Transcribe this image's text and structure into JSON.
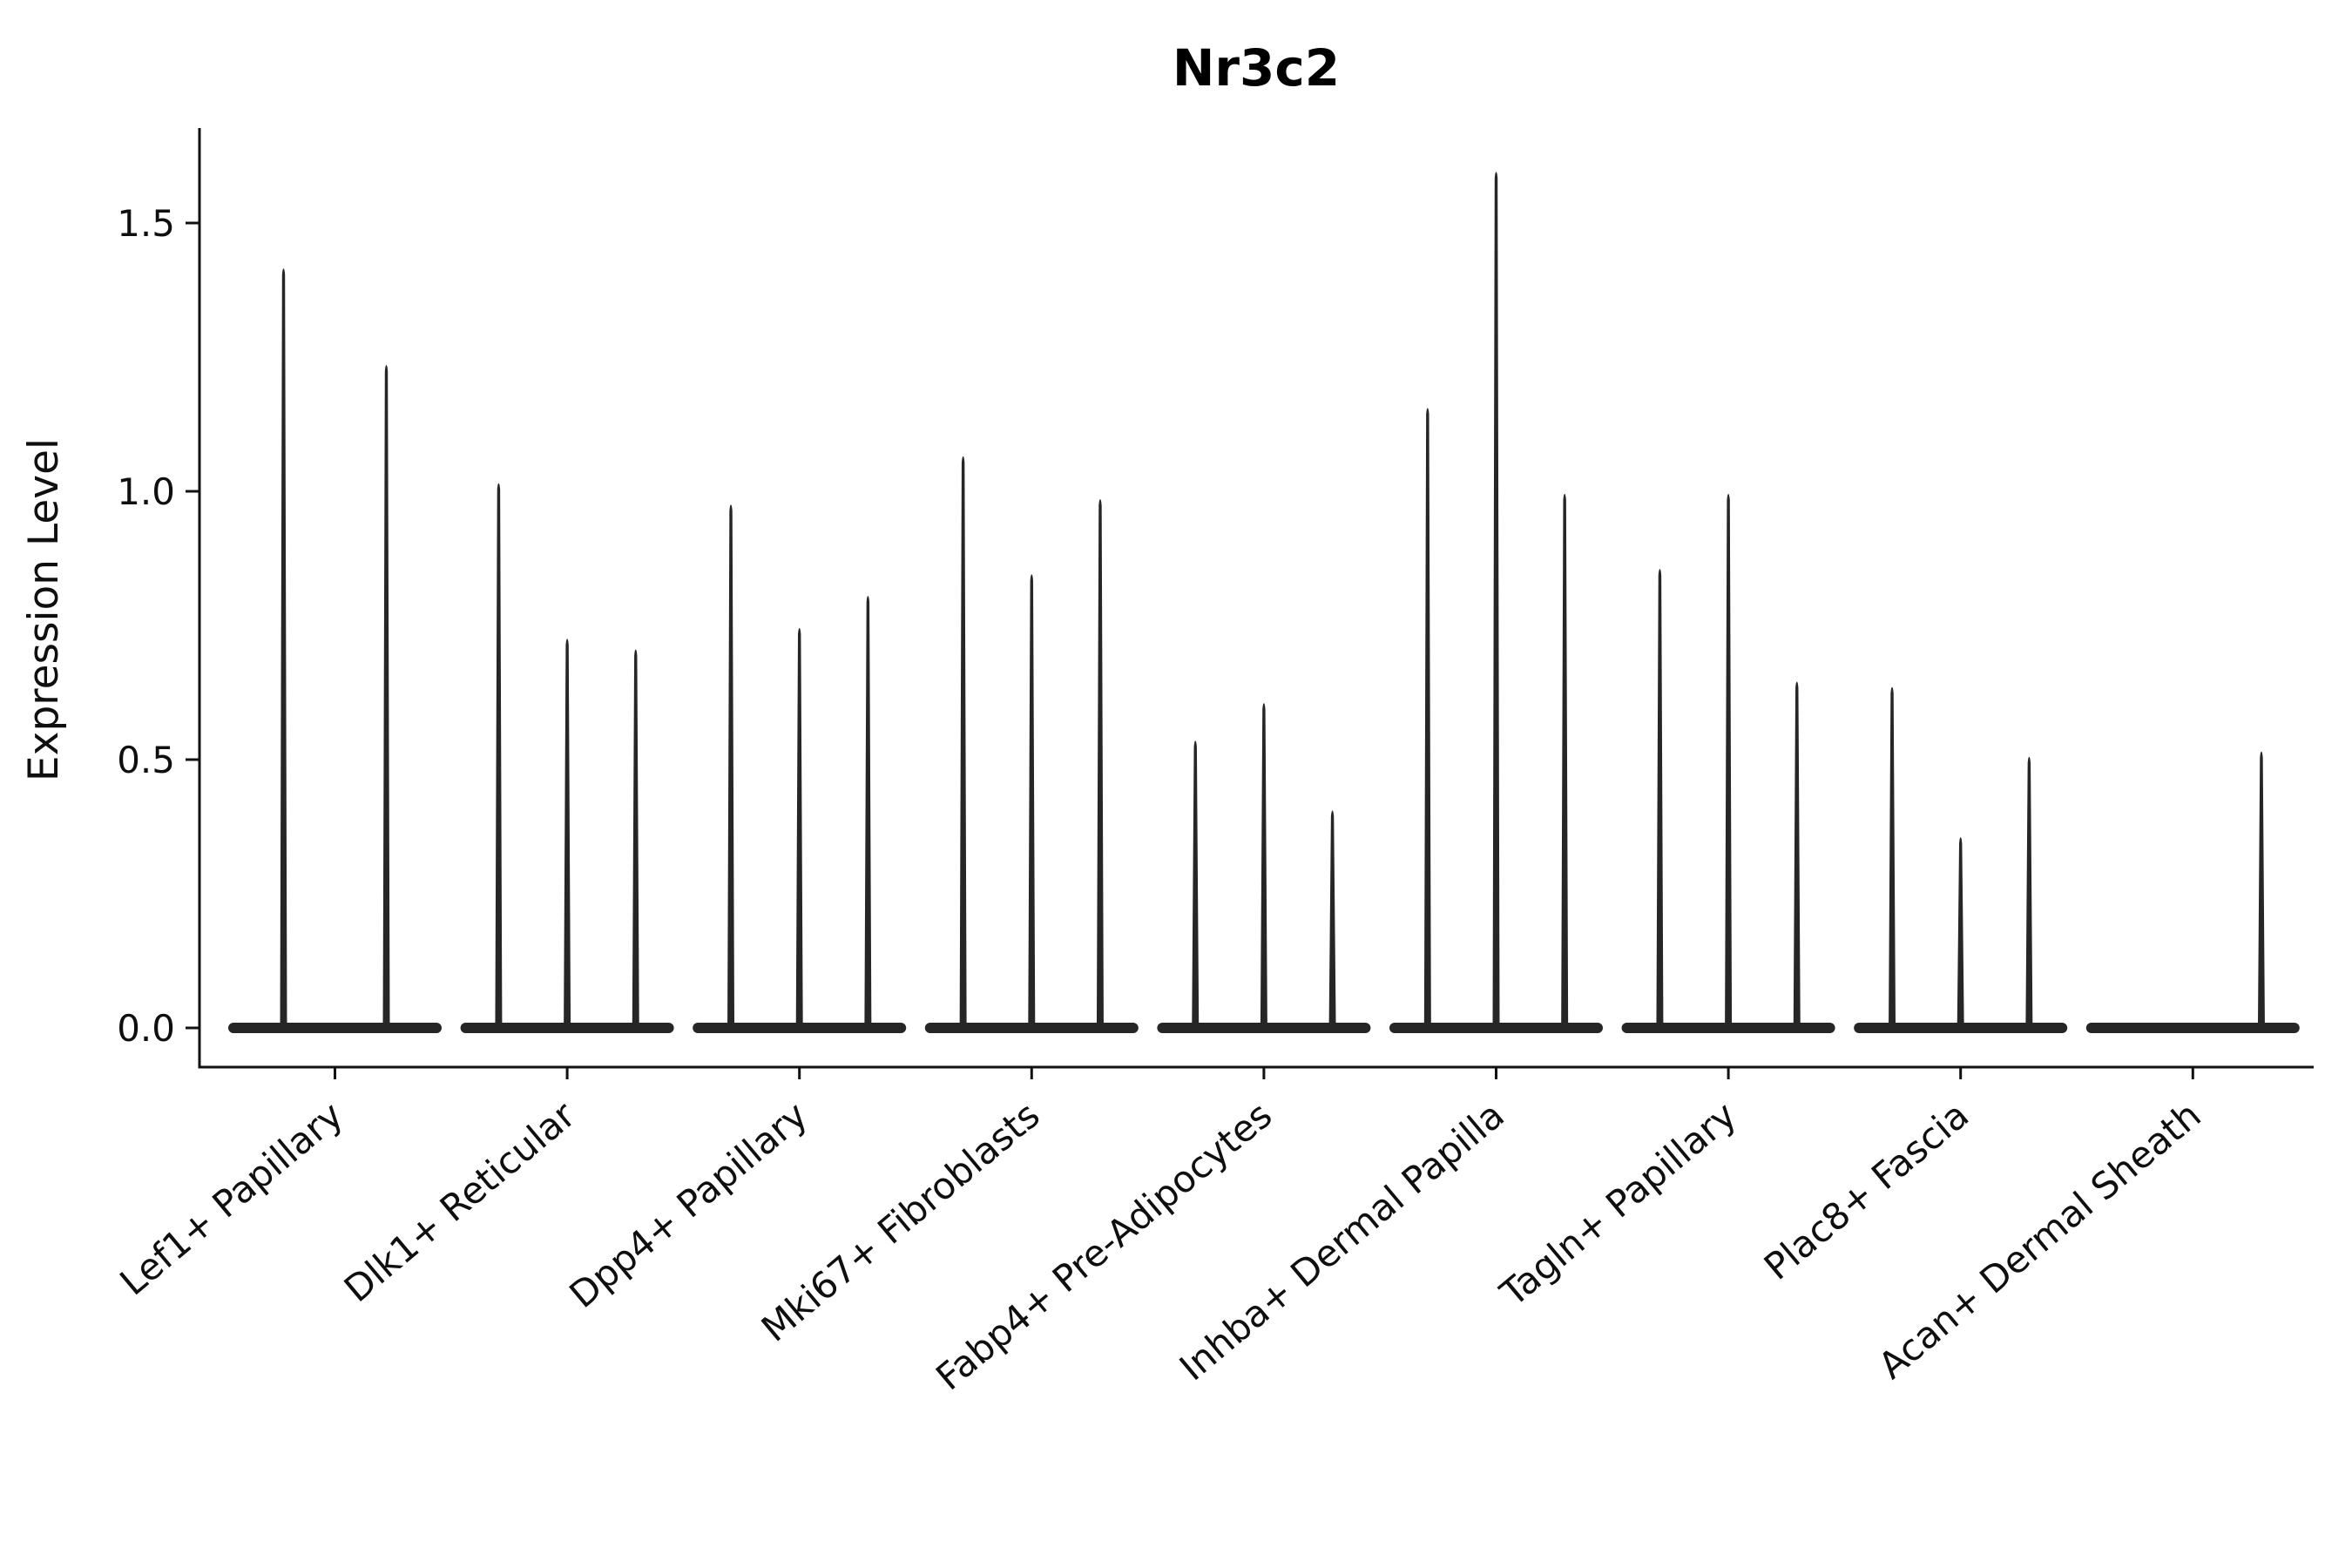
{
  "title": "Nr3c2",
  "chart_data": {
    "type": "violin",
    "title": "Nr3c2",
    "xlabel": "",
    "ylabel": "Expression Level",
    "ylim": [
      0,
      1.65
    ],
    "yticks": [
      "0.0",
      "0.5",
      "1.0",
      "1.5"
    ],
    "grid": false,
    "legend": "none",
    "ink_color": "#111111",
    "violin_color": "#262626",
    "categories": [
      "Lef1+ Papillary",
      "Dlk1+ Reticular",
      "Dpp4+ Papillary",
      "Mki67+ Fibroblasts",
      "Fabp4+ Pre-Adipocytes",
      "Inhba+ Dermal Papilla",
      "Tagln+ Papillary",
      "Plac8+ Fascia",
      "Acan+ Dermal Sheath"
    ],
    "groups": [
      {
        "label": "Lef1+ Papillary",
        "violin_max_expression": [
          1.42,
          1.24
        ]
      },
      {
        "label": "Dlk1+ Reticular",
        "violin_max_expression": [
          1.02,
          0.73,
          0.71
        ]
      },
      {
        "label": "Dpp4+ Papillary",
        "violin_max_expression": [
          0.98,
          0.75,
          0.81
        ]
      },
      {
        "label": "Mki67+ Fibroblasts",
        "violin_max_expression": [
          1.07,
          0.85,
          0.99
        ]
      },
      {
        "label": "Fabp4+ Pre-Adipocytes",
        "violin_max_expression": [
          0.54,
          0.61,
          0.41
        ]
      },
      {
        "label": "Inhba+ Dermal Papilla",
        "violin_max_expression": [
          1.16,
          1.6,
          1.0
        ]
      },
      {
        "label": "Tagln+ Papillary",
        "violin_max_expression": [
          0.86,
          1.0,
          0.65
        ]
      },
      {
        "label": "Plac8+ Fascia",
        "violin_max_expression": [
          0.64,
          0.36,
          0.51
        ]
      },
      {
        "label": "Acan+ Dermal Sheath",
        "violin_max_expression": [
          0,
          0,
          0.52
        ]
      }
    ],
    "note": "All violins have their bulk mass at expression 0 (flat baseline) with thin needle-like upper tails."
  }
}
